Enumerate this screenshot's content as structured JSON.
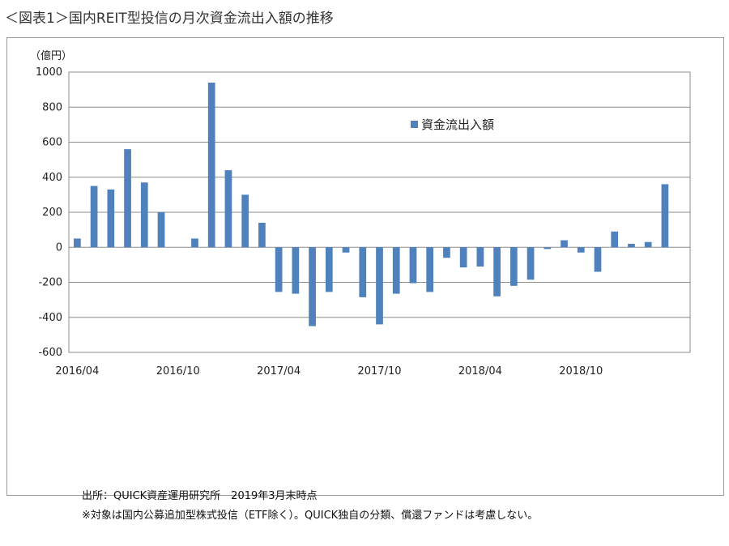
{
  "figure_title": "＜図表1＞国内REIT型投信の月次資金流出入額の推移",
  "notes": {
    "source": "出所：QUICK資産運用研究所　2019年3月末時点",
    "remark": "※対象は国内公募追加型株式投信（ETF除く）。QUICK独自の分類、償還ファンドは考慮しない。"
  },
  "chart_data": {
    "type": "bar",
    "unit_label": "（億円）",
    "ylim": [
      -600,
      1000
    ],
    "yticks": [
      1000,
      800,
      600,
      400,
      200,
      0,
      -200,
      -400,
      -600
    ],
    "grid": true,
    "legend_position": "top-right",
    "bar_color": "#4f81bd",
    "x_tick_labels": [
      "2016/04",
      "2016/10",
      "2017/04",
      "2017/10",
      "2018/04",
      "2018/10"
    ],
    "x_tick_label_indices": [
      0,
      6,
      12,
      18,
      24,
      30
    ],
    "categories": [
      "2016/04",
      "2016/05",
      "2016/06",
      "2016/07",
      "2016/08",
      "2016/09",
      "2016/10",
      "2016/11",
      "2016/12",
      "2017/01",
      "2017/02",
      "2017/03",
      "2017/04",
      "2017/05",
      "2017/06",
      "2017/07",
      "2017/08",
      "2017/09",
      "2017/10",
      "2017/11",
      "2017/12",
      "2018/01",
      "2018/02",
      "2018/03",
      "2018/04",
      "2018/05",
      "2018/06",
      "2018/07",
      "2018/08",
      "2018/09",
      "2018/10",
      "2018/11",
      "2018/12",
      "2019/01",
      "2019/02",
      "2019/03",
      "2019/04"
    ],
    "series": [
      {
        "name": "資金流出入額",
        "values": [
          50,
          350,
          330,
          560,
          370,
          200,
          null,
          50,
          940,
          440,
          300,
          140,
          -255,
          -265,
          -450,
          -255,
          -30,
          -285,
          -440,
          -265,
          -205,
          -255,
          -60,
          -115,
          -110,
          -280,
          -220,
          -185,
          -10,
          40,
          -30,
          -140,
          90,
          20,
          30,
          360,
          null
        ]
      }
    ]
  }
}
